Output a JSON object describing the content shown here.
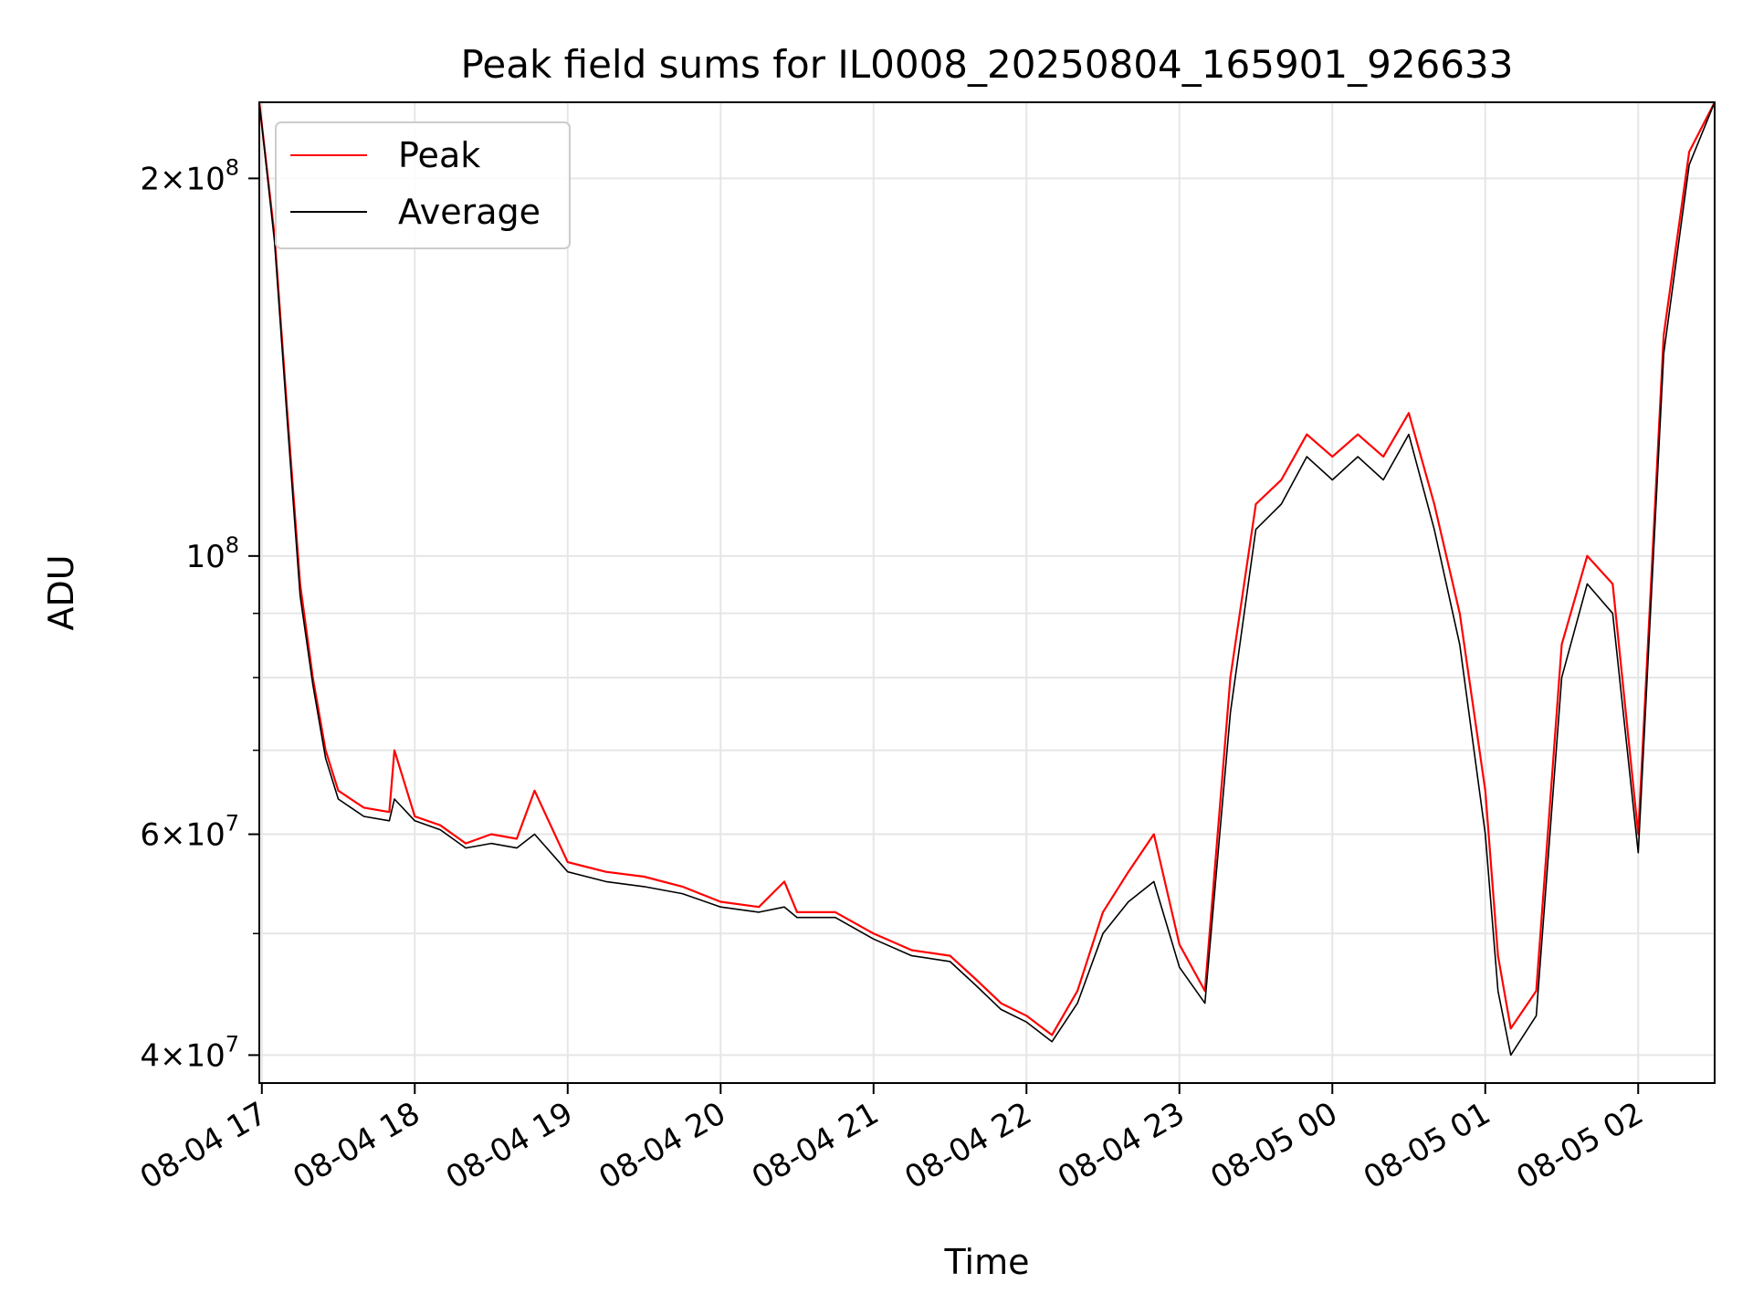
{
  "chart_data": {
    "type": "line",
    "title": "Peak field sums for IL0008_20250804_165901_926633",
    "xlabel": "Time",
    "ylabel": "ADU",
    "yscale": "log",
    "ylim": [
      38000000,
      230000000
    ],
    "xlim": [
      "2025-08-04T16:59:00",
      "2025-08-05T02:30:00"
    ],
    "grid": true,
    "legend_position": "top-left",
    "x_ticks": [
      {
        "value": "2025-08-04T17:00:00",
        "label": "08-04 17"
      },
      {
        "value": "2025-08-04T18:00:00",
        "label": "08-04 18"
      },
      {
        "value": "2025-08-04T19:00:00",
        "label": "08-04 19"
      },
      {
        "value": "2025-08-04T20:00:00",
        "label": "08-04 20"
      },
      {
        "value": "2025-08-04T21:00:00",
        "label": "08-04 21"
      },
      {
        "value": "2025-08-04T22:00:00",
        "label": "08-04 22"
      },
      {
        "value": "2025-08-04T23:00:00",
        "label": "08-04 23"
      },
      {
        "value": "2025-08-05T00:00:00",
        "label": "08-05 00"
      },
      {
        "value": "2025-08-05T01:00:00",
        "label": "08-05 01"
      },
      {
        "value": "2025-08-05T02:00:00",
        "label": "08-05 02"
      }
    ],
    "y_major_ticks": [
      {
        "value": 40000000,
        "mantissa": "4",
        "exp": "7"
      },
      {
        "value": 60000000,
        "mantissa": "6",
        "exp": "7"
      },
      {
        "value": 100000000,
        "mantissa": "",
        "exp": "8"
      },
      {
        "value": 200000000,
        "mantissa": "2",
        "exp": "8"
      }
    ],
    "y_minor_ticks": [
      50000000,
      70000000,
      80000000,
      90000000
    ],
    "series": [
      {
        "name": "Peak",
        "color": "#ff0000",
        "x": [
          "2025-08-04T16:59:00",
          "2025-08-04T17:05:00",
          "2025-08-04T17:10:00",
          "2025-08-04T17:15:00",
          "2025-08-04T17:20:00",
          "2025-08-04T17:25:00",
          "2025-08-04T17:30:00",
          "2025-08-04T17:40:00",
          "2025-08-04T17:50:00",
          "2025-08-04T17:52:00",
          "2025-08-04T18:00:00",
          "2025-08-04T18:10:00",
          "2025-08-04T18:20:00",
          "2025-08-04T18:30:00",
          "2025-08-04T18:40:00",
          "2025-08-04T18:47:00",
          "2025-08-04T19:00:00",
          "2025-08-04T19:15:00",
          "2025-08-04T19:30:00",
          "2025-08-04T19:45:00",
          "2025-08-04T20:00:00",
          "2025-08-04T20:15:00",
          "2025-08-04T20:25:00",
          "2025-08-04T20:30:00",
          "2025-08-04T20:45:00",
          "2025-08-04T21:00:00",
          "2025-08-04T21:15:00",
          "2025-08-04T21:30:00",
          "2025-08-04T21:40:00",
          "2025-08-04T21:50:00",
          "2025-08-04T22:00:00",
          "2025-08-04T22:10:00",
          "2025-08-04T22:20:00",
          "2025-08-04T22:30:00",
          "2025-08-04T22:40:00",
          "2025-08-04T22:50:00",
          "2025-08-04T23:00:00",
          "2025-08-04T23:10:00",
          "2025-08-04T23:20:00",
          "2025-08-04T23:30:00",
          "2025-08-04T23:40:00",
          "2025-08-04T23:50:00",
          "2025-08-05T00:00:00",
          "2025-08-05T00:10:00",
          "2025-08-05T00:20:00",
          "2025-08-05T00:30:00",
          "2025-08-05T00:40:00",
          "2025-08-05T00:50:00",
          "2025-08-05T01:00:00",
          "2025-08-05T01:05:00",
          "2025-08-05T01:10:00",
          "2025-08-05T01:20:00",
          "2025-08-05T01:30:00",
          "2025-08-05T01:40:00",
          "2025-08-05T01:50:00",
          "2025-08-05T02:00:00",
          "2025-08-05T02:10:00",
          "2025-08-05T02:20:00",
          "2025-08-05T02:30:00"
        ],
        "y": [
          230000000,
          180000000,
          130000000,
          95000000,
          80000000,
          70000000,
          65000000,
          63000000,
          62500000,
          70000000,
          62000000,
          61000000,
          59000000,
          60000000,
          59500000,
          65000000,
          57000000,
          56000000,
          55500000,
          54500000,
          53000000,
          52500000,
          55000000,
          52000000,
          52000000,
          50000000,
          48500000,
          48000000,
          46000000,
          44000000,
          43000000,
          41500000,
          45000000,
          52000000,
          56000000,
          60000000,
          49000000,
          45000000,
          80000000,
          110000000,
          115000000,
          125000000,
          120000000,
          125000000,
          120000000,
          130000000,
          110000000,
          90000000,
          65000000,
          48000000,
          42000000,
          45000000,
          85000000,
          100000000,
          95000000,
          60000000,
          150000000,
          210000000,
          230000000
        ]
      },
      {
        "name": "Average",
        "color": "#000000",
        "x": [
          "2025-08-04T16:59:00",
          "2025-08-04T17:05:00",
          "2025-08-04T17:10:00",
          "2025-08-04T17:15:00",
          "2025-08-04T17:20:00",
          "2025-08-04T17:25:00",
          "2025-08-04T17:30:00",
          "2025-08-04T17:40:00",
          "2025-08-04T17:50:00",
          "2025-08-04T17:52:00",
          "2025-08-04T18:00:00",
          "2025-08-04T18:10:00",
          "2025-08-04T18:20:00",
          "2025-08-04T18:30:00",
          "2025-08-04T18:40:00",
          "2025-08-04T18:47:00",
          "2025-08-04T19:00:00",
          "2025-08-04T19:15:00",
          "2025-08-04T19:30:00",
          "2025-08-04T19:45:00",
          "2025-08-04T20:00:00",
          "2025-08-04T20:15:00",
          "2025-08-04T20:25:00",
          "2025-08-04T20:30:00",
          "2025-08-04T20:45:00",
          "2025-08-04T21:00:00",
          "2025-08-04T21:15:00",
          "2025-08-04T21:30:00",
          "2025-08-04T21:40:00",
          "2025-08-04T21:50:00",
          "2025-08-04T22:00:00",
          "2025-08-04T22:10:00",
          "2025-08-04T22:20:00",
          "2025-08-04T22:30:00",
          "2025-08-04T22:40:00",
          "2025-08-04T22:50:00",
          "2025-08-04T23:00:00",
          "2025-08-04T23:10:00",
          "2025-08-04T23:20:00",
          "2025-08-04T23:30:00",
          "2025-08-04T23:40:00",
          "2025-08-04T23:50:00",
          "2025-08-05T00:00:00",
          "2025-08-05T00:10:00",
          "2025-08-05T00:20:00",
          "2025-08-05T00:30:00",
          "2025-08-05T00:40:00",
          "2025-08-05T00:50:00",
          "2025-08-05T01:00:00",
          "2025-08-05T01:05:00",
          "2025-08-05T01:10:00",
          "2025-08-05T01:20:00",
          "2025-08-05T01:30:00",
          "2025-08-05T01:40:00",
          "2025-08-05T01:50:00",
          "2025-08-05T02:00:00",
          "2025-08-05T02:10:00",
          "2025-08-05T02:20:00",
          "2025-08-05T02:30:00"
        ],
        "y": [
          230000000,
          178000000,
          128000000,
          93000000,
          79000000,
          69000000,
          64000000,
          62000000,
          61500000,
          64000000,
          61500000,
          60500000,
          58500000,
          59000000,
          58500000,
          60000000,
          56000000,
          55000000,
          54500000,
          53800000,
          52500000,
          52000000,
          52500000,
          51500000,
          51500000,
          49500000,
          48000000,
          47500000,
          45500000,
          43500000,
          42500000,
          41000000,
          44000000,
          50000000,
          53000000,
          55000000,
          47000000,
          44000000,
          75000000,
          105000000,
          110000000,
          120000000,
          115000000,
          120000000,
          115000000,
          125000000,
          105000000,
          85000000,
          60000000,
          45000000,
          40000000,
          43000000,
          80000000,
          95000000,
          90000000,
          58000000,
          145000000,
          205000000,
          230000000
        ]
      }
    ]
  }
}
